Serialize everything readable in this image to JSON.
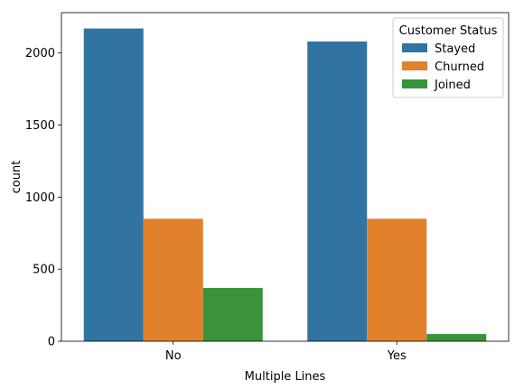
{
  "chart_data": {
    "type": "bar",
    "title": "",
    "xlabel": "Multiple Lines",
    "ylabel": "count",
    "categories": [
      "No",
      "Yes"
    ],
    "series": [
      {
        "name": "Stayed",
        "color": "#3274a1",
        "values": [
          2170,
          2080
        ]
      },
      {
        "name": "Churned",
        "color": "#e1812c",
        "values": [
          850,
          850
        ]
      },
      {
        "name": "Joined",
        "color": "#3a923a",
        "values": [
          370,
          50
        ]
      }
    ],
    "ylim": [
      0,
      2280
    ],
    "yticks": [
      0,
      500,
      1000,
      1500,
      2000
    ],
    "legend": {
      "title": "Customer Status",
      "position": "top-right"
    },
    "grid": false
  }
}
